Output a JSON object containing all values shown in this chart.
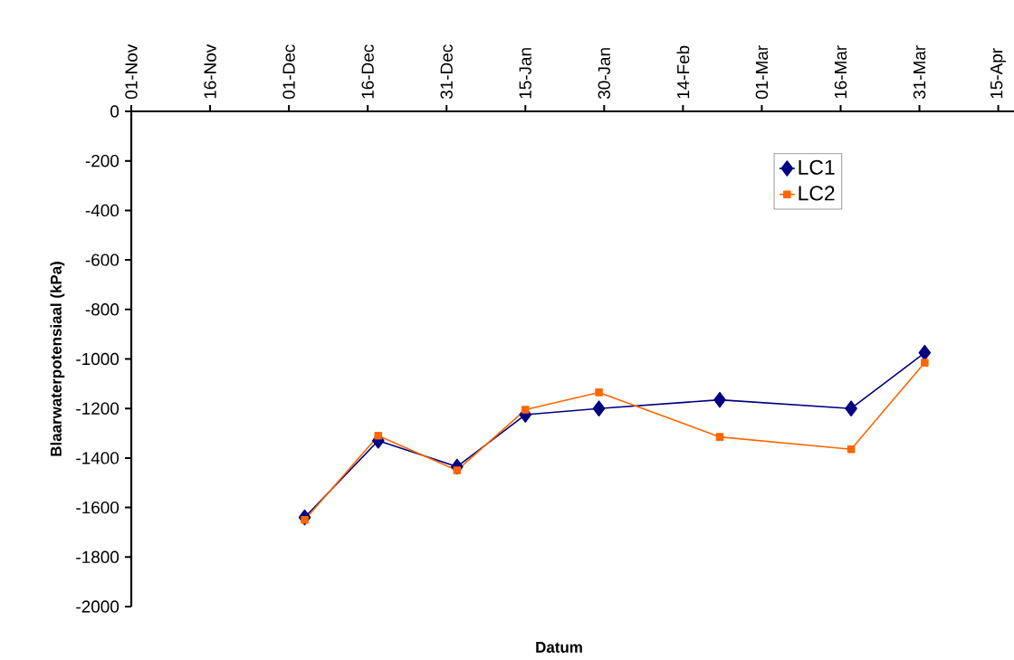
{
  "chart_data": {
    "type": "line",
    "xlabel": "Datum",
    "ylabel": "Blaarwaterpotensiaal (kPa)",
    "x": [
      "2000-12-04",
      "2000-12-18",
      "2001-01-02",
      "2001-01-15",
      "2001-01-29",
      "2001-02-21",
      "2001-03-18",
      "2001-04-01"
    ],
    "series": [
      {
        "name": "LC1",
        "color": "#000080",
        "marker": "diamond",
        "values": [
          -1640,
          -1330,
          -1435,
          -1225,
          -1200,
          -1165,
          -1200,
          -975
        ]
      },
      {
        "name": "LC2",
        "color": "#ff6600",
        "marker": "square",
        "values": [
          -1650,
          -1310,
          -1450,
          -1205,
          -1135,
          -1315,
          -1365,
          -1015
        ]
      }
    ],
    "xlim": [
      "2000-11-01",
      "2001-04-18"
    ],
    "xticks": [
      {
        "value": "2000-11-01",
        "label": "01-Nov"
      },
      {
        "value": "2000-11-16",
        "label": "16-Nov"
      },
      {
        "value": "2000-12-01",
        "label": "01-Dec"
      },
      {
        "value": "2000-12-16",
        "label": "16-Dec"
      },
      {
        "value": "2000-12-31",
        "label": "31-Dec"
      },
      {
        "value": "2001-01-15",
        "label": "15-Jan"
      },
      {
        "value": "2001-01-30",
        "label": "30-Jan"
      },
      {
        "value": "2001-02-14",
        "label": "14-Feb"
      },
      {
        "value": "2001-03-01",
        "label": "01-Mar"
      },
      {
        "value": "2001-03-16",
        "label": "16-Mar"
      },
      {
        "value": "2001-03-31",
        "label": "31-Mar"
      },
      {
        "value": "2001-04-15",
        "label": "15-Apr"
      }
    ],
    "ylim": [
      -2000,
      0
    ],
    "yticks": [
      -2000,
      -1800,
      -1600,
      -1400,
      -1200,
      -1000,
      -800,
      -600,
      -400,
      -200,
      0
    ],
    "grid": false,
    "legend": "top right",
    "line_style": "solid"
  }
}
